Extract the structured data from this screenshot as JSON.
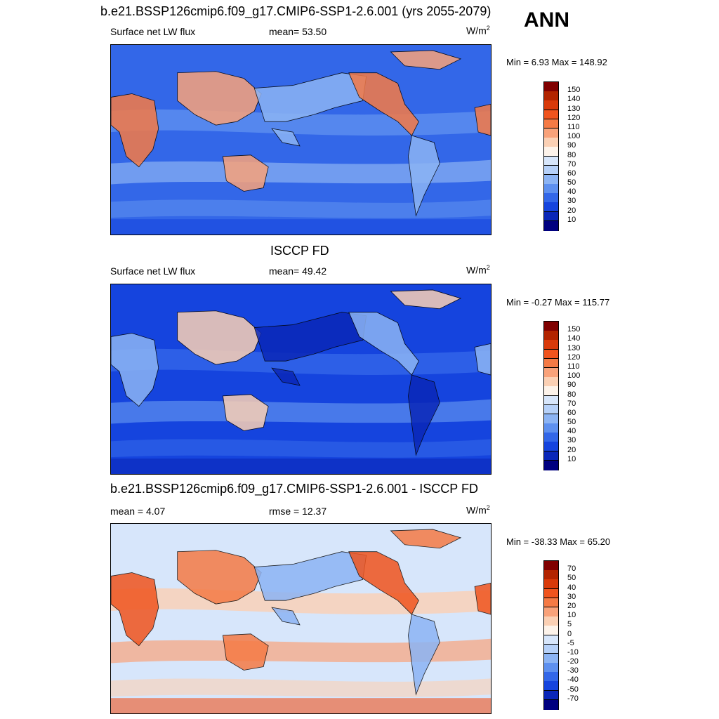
{
  "season": "ANN",
  "panels": [
    {
      "title": "b.e21.BSSP126cmip6.f09_g17.CMIP6-SSP1-2.6.001 (yrs 2055-2079)",
      "left_label": "Surface net LW flux",
      "mid_label": "mean=  53.50",
      "units_base": "W/m",
      "units_exp": "2",
      "minmax": "Min =   6.93 Max = 148.92",
      "field_type": "model",
      "colorbar": {
        "labels": [
          "150",
          "140",
          "130",
          "120",
          "110",
          "100",
          "90",
          "80",
          "70",
          "60",
          "50",
          "40",
          "30",
          "20",
          "10"
        ],
        "colors": [
          "#800000",
          "#b22400",
          "#d93a0a",
          "#f0541e",
          "#f57a45",
          "#f9a27a",
          "#fbd0b4",
          "#fdf3ea",
          "#d7e6fb",
          "#b6d1f9",
          "#8cb4f4",
          "#5e90ef",
          "#3367e8",
          "#1544de",
          "#0a27b8",
          "#00007f"
        ]
      }
    },
    {
      "title": "ISCCP FD",
      "left_label": "Surface net LW flux",
      "mid_label": "mean=  49.42",
      "units_base": "W/m",
      "units_exp": "2",
      "minmax": "Min =  -0.27 Max = 115.77",
      "field_type": "obs",
      "colorbar": {
        "labels": [
          "150",
          "140",
          "130",
          "120",
          "110",
          "100",
          "90",
          "80",
          "70",
          "60",
          "50",
          "40",
          "30",
          "20",
          "10"
        ],
        "colors": [
          "#800000",
          "#b22400",
          "#d93a0a",
          "#f0541e",
          "#f57a45",
          "#f9a27a",
          "#fbd0b4",
          "#fdf3ea",
          "#d7e6fb",
          "#b6d1f9",
          "#8cb4f4",
          "#5e90ef",
          "#3367e8",
          "#1544de",
          "#0a27b8",
          "#00007f"
        ]
      }
    },
    {
      "title": "b.e21.BSSP126cmip6.f09_g17.CMIP6-SSP1-2.6.001 - ISCCP FD",
      "left_label": "mean =   4.07",
      "mid_label": "rmse =  12.37",
      "units_base": "W/m",
      "units_exp": "2",
      "minmax": "Min = -38.33 Max =  65.20",
      "field_type": "diff",
      "colorbar": {
        "labels": [
          "70",
          "50",
          "40",
          "30",
          "20",
          "10",
          "5",
          "0",
          "-5",
          "-10",
          "-20",
          "-30",
          "-40",
          "-50",
          "-70"
        ],
        "colors": [
          "#800000",
          "#b22400",
          "#d93a0a",
          "#f0541e",
          "#f57a45",
          "#f9a27a",
          "#fbd0b4",
          "#fdf3ea",
          "#d7e6fb",
          "#b6d1f9",
          "#8cb4f4",
          "#5e90ef",
          "#3367e8",
          "#1544de",
          "#0a27b8",
          "#00007f"
        ]
      }
    }
  ]
}
